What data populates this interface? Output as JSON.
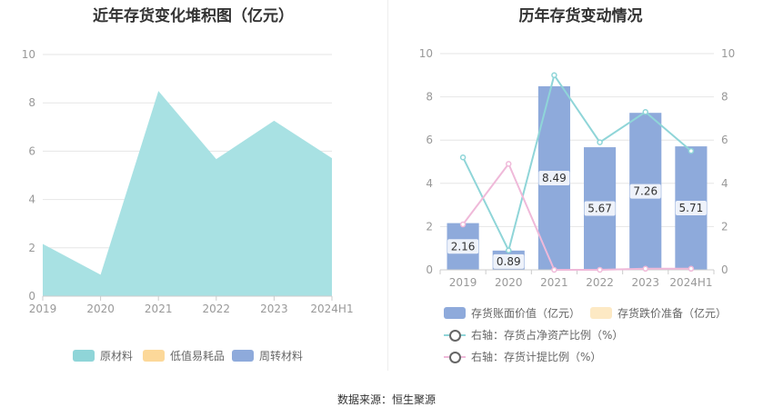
{
  "source_text": "数据来源：恒生聚源",
  "chart_data": [
    {
      "type": "area",
      "stacked": true,
      "title": "近年存货变化堆积图（亿元）",
      "categories": [
        "2019",
        "2020",
        "2021",
        "2022",
        "2023",
        "2024H1"
      ],
      "yticks": [
        "0",
        "2",
        "4",
        "6",
        "8",
        "10"
      ],
      "ylim": [
        0,
        10
      ],
      "grid": true,
      "legend_position": "bottom",
      "series": [
        {
          "name": "原材料",
          "color": "#a8e1e3",
          "values": [
            2.16,
            0.89,
            8.49,
            5.67,
            7.26,
            5.71
          ]
        },
        {
          "name": "低值易耗品",
          "color": "#fcd899",
          "values": [
            0,
            0,
            0,
            0,
            0,
            0
          ]
        },
        {
          "name": "周转材料",
          "color": "#8eaadb",
          "values": [
            0,
            0,
            0,
            0,
            0,
            0
          ]
        }
      ],
      "legend": [
        {
          "name": "原材料",
          "color": "#8fd5d8"
        },
        {
          "name": "低值易耗品",
          "color": "#fcd899"
        },
        {
          "name": "周转材料",
          "color": "#8eaadb"
        }
      ]
    },
    {
      "type": "bar",
      "title": "历年存货变动情况",
      "categories": [
        "2019",
        "2020",
        "2021",
        "2022",
        "2023",
        "2024H1"
      ],
      "yticks_left": [
        "0",
        "2",
        "4",
        "6",
        "8",
        "10"
      ],
      "yticks_right": [
        "0",
        "2",
        "4",
        "6",
        "8",
        "10"
      ],
      "ylim": [
        0,
        10
      ],
      "y2lim": [
        0,
        10
      ],
      "grid": true,
      "legend_position": "bottom",
      "bars": {
        "name": "存货账面价值（亿元）",
        "color": "#8eaadb",
        "values": [
          2.16,
          0.89,
          8.49,
          5.67,
          7.26,
          5.71
        ],
        "labels": [
          "2.16",
          "0.89",
          "8.49",
          "5.67",
          "7.26",
          "5.71"
        ]
      },
      "bars2": {
        "name": "存货跌价准备（亿元）",
        "color": "#fde9c4",
        "values": [
          0,
          0,
          0,
          0,
          0,
          0
        ]
      },
      "lines": [
        {
          "name": "右轴：存货占净资产比例（%）",
          "color": "#8fd5d8",
          "values": [
            5.2,
            0.9,
            9.0,
            5.9,
            7.3,
            5.5
          ]
        },
        {
          "name": "右轴：存货计提比例（%）",
          "color": "#efb9d9",
          "values": [
            2.1,
            4.9,
            0,
            0,
            0.05,
            0.05
          ]
        }
      ]
    }
  ]
}
